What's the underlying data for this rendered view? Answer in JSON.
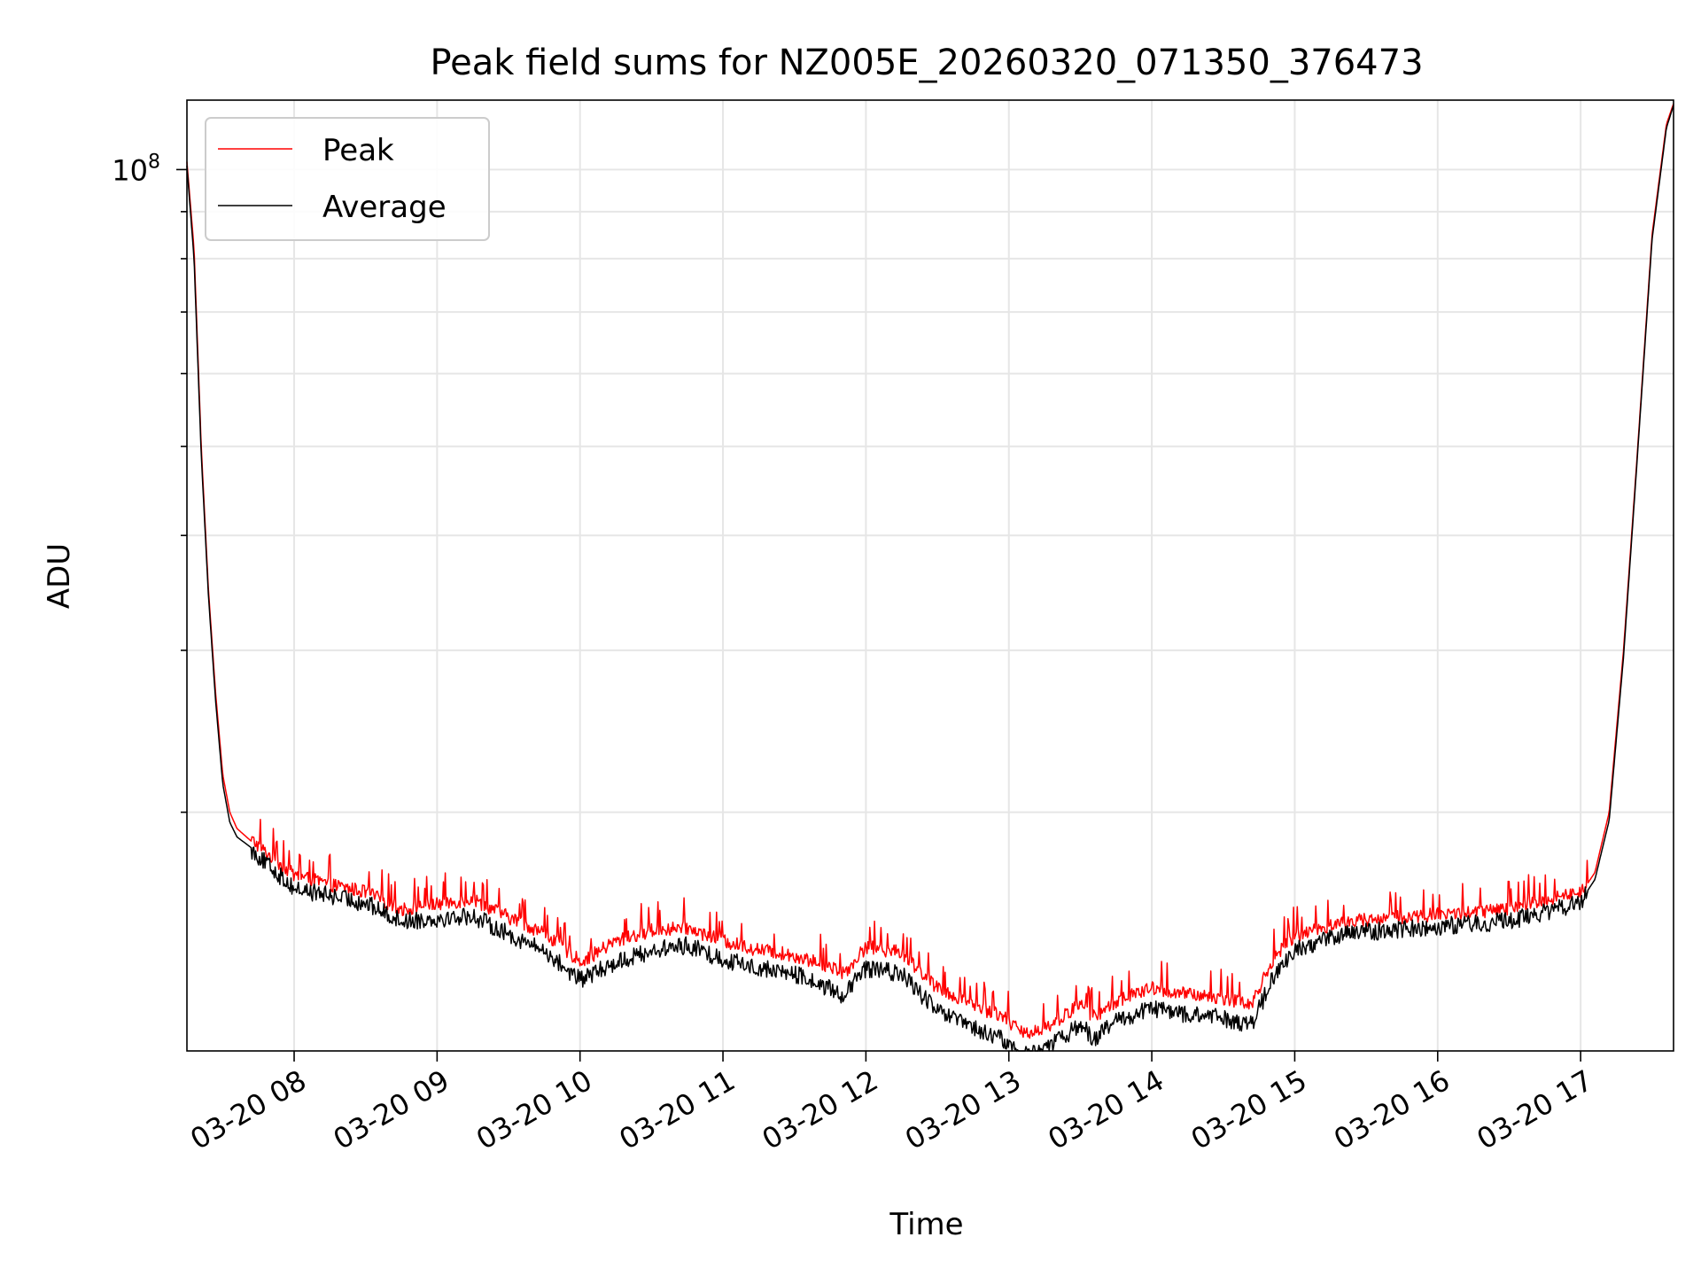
{
  "chart_data": {
    "type": "line",
    "title": "Peak field sums for NZ005E_20260320_071350_376473",
    "xlabel": "Time",
    "ylabel": "ADU",
    "yscale": "log",
    "ylim": [
      11000000,
      119000000
    ],
    "xlim_hours": [
      7.25,
      17.65
    ],
    "y_tick_label": {
      "base": "10",
      "exp": "8",
      "value": 100000000
    },
    "x_ticks": [
      {
        "value": 8,
        "label": "03-20 08"
      },
      {
        "value": 9,
        "label": "03-20 09"
      },
      {
        "value": 10,
        "label": "03-20 10"
      },
      {
        "value": 11,
        "label": "03-20 11"
      },
      {
        "value": 12,
        "label": "03-20 12"
      },
      {
        "value": 13,
        "label": "03-20 13"
      },
      {
        "value": 14,
        "label": "03-20 14"
      },
      {
        "value": 15,
        "label": "03-20 15"
      },
      {
        "value": 16,
        "label": "03-20 16"
      },
      {
        "value": 17,
        "label": "03-20 17"
      }
    ],
    "grid": true,
    "legend": {
      "position": "top-left",
      "entries": [
        {
          "label": "Peak",
          "color": "#ff0000"
        },
        {
          "label": "Average",
          "color": "#000000"
        }
      ]
    },
    "series": [
      {
        "name": "Peak",
        "color": "#ff0000",
        "x": [
          7.25,
          7.3,
          7.35,
          7.4,
          7.45,
          7.5,
          7.55,
          7.6,
          7.7,
          7.8,
          8.0,
          8.25,
          8.5,
          8.75,
          9.0,
          9.25,
          9.5,
          9.75,
          10.0,
          10.05,
          10.25,
          10.5,
          10.75,
          11.0,
          11.25,
          11.5,
          11.75,
          11.85,
          12.0,
          12.25,
          12.5,
          12.75,
          12.85,
          12.95,
          13.1,
          13.3,
          13.5,
          13.6,
          13.75,
          14.0,
          14.25,
          14.5,
          14.7,
          14.85,
          15.0,
          15.25,
          15.5,
          16.0,
          16.5,
          17.0,
          17.1,
          17.2,
          17.3,
          17.4,
          17.5,
          17.6,
          17.65
        ],
        "y": [
          102000000,
          82000000,
          50000000,
          35000000,
          27000000,
          22000000,
          20000000,
          19200000,
          18600000,
          18000000,
          17000000,
          16600000,
          16300000,
          15600000,
          15800000,
          16000000,
          15300000,
          14700000,
          13700000,
          13800000,
          14400000,
          14800000,
          14900000,
          14400000,
          14100000,
          13900000,
          13500000,
          13300000,
          14200000,
          14000000,
          12800000,
          12300000,
          12100000,
          12000000,
          11400000,
          11700000,
          12300000,
          11900000,
          12400000,
          12800000,
          12600000,
          12500000,
          12300000,
          13800000,
          14600000,
          15000000,
          15200000,
          15400000,
          15600000,
          16300000,
          17200000,
          20000000,
          30000000,
          50000000,
          85000000,
          112000000,
          118000000
        ]
      },
      {
        "name": "Average",
        "color": "#000000",
        "x": [
          7.25,
          7.3,
          7.35,
          7.4,
          7.45,
          7.5,
          7.55,
          7.6,
          7.7,
          7.8,
          8.0,
          8.25,
          8.5,
          8.75,
          9.0,
          9.25,
          9.5,
          9.75,
          10.0,
          10.05,
          10.25,
          10.5,
          10.75,
          11.0,
          11.25,
          11.5,
          11.75,
          11.85,
          12.0,
          12.25,
          12.5,
          12.75,
          12.85,
          12.95,
          13.1,
          13.3,
          13.5,
          13.6,
          13.75,
          14.0,
          14.25,
          14.5,
          14.7,
          14.85,
          15.0,
          15.25,
          15.5,
          16.0,
          16.5,
          17.0,
          17.1,
          17.2,
          17.3,
          17.4,
          17.5,
          17.6,
          17.65
        ],
        "y": [
          101000000,
          80000000,
          49000000,
          34500000,
          26500000,
          21500000,
          19500000,
          18800000,
          18300000,
          17700000,
          16600000,
          16300000,
          16000000,
          15300000,
          15400000,
          15500000,
          14800000,
          14200000,
          13200000,
          13300000,
          13800000,
          14200000,
          14400000,
          13900000,
          13600000,
          13400000,
          12900000,
          12700000,
          13600000,
          13400000,
          12200000,
          11700000,
          11500000,
          11400000,
          10900000,
          11200000,
          11800000,
          11400000,
          11900000,
          12300000,
          12100000,
          12000000,
          11800000,
          13300000,
          14200000,
          14700000,
          14900000,
          15100000,
          15300000,
          16000000,
          16900000,
          19600000,
          29500000,
          49500000,
          84000000,
          111000000,
          117500000
        ]
      }
    ]
  }
}
